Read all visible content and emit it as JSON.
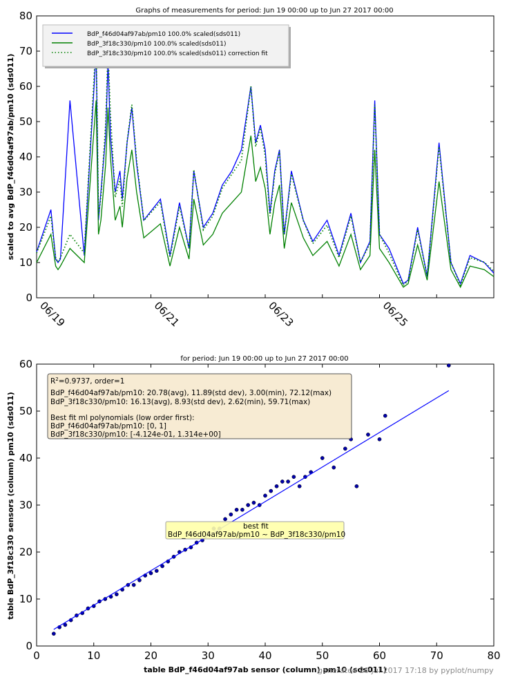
{
  "chart_data": [
    {
      "type": "line",
      "title": "Graphs of measurements for period: Jun 19 00:00 up to Jun 27 2017 00:00",
      "xlabel": "",
      "ylabel": "scaled to avg BdP_f46d04af97ab/pm10 (sds011)",
      "xlim": [
        "2017-06-19 00:00",
        "2017-06-27 00:00"
      ],
      "ylim": [
        0,
        80
      ],
      "x_ticks": [
        "06/19",
        "06/21",
        "06/23",
        "06/25"
      ],
      "y_ticks": [
        0,
        10,
        20,
        30,
        40,
        50,
        60,
        70,
        80
      ],
      "legend_position": "top-left",
      "grid": false,
      "x": [
        "2017-06-19 00:00",
        "2017-06-19 06:00",
        "2017-06-19 08:00",
        "2017-06-19 09:00",
        "2017-06-19 10:00",
        "2017-06-19 14:00",
        "2017-06-19 20:00",
        "2017-06-20 01:00",
        "2017-06-20 02:00",
        "2017-06-20 03:00",
        "2017-06-20 05:00",
        "2017-06-20 06:00",
        "2017-06-20 07:00",
        "2017-06-20 09:00",
        "2017-06-20 11:00",
        "2017-06-20 12:00",
        "2017-06-20 14:00",
        "2017-06-20 16:00",
        "2017-06-20 18:00",
        "2017-06-20 21:00",
        "2017-06-21 04:00",
        "2017-06-21 08:00",
        "2017-06-21 12:00",
        "2017-06-21 16:00",
        "2017-06-21 18:00",
        "2017-06-21 22:00",
        "2017-06-22 02:00",
        "2017-06-22 06:00",
        "2017-06-22 10:00",
        "2017-06-22 14:00",
        "2017-06-22 18:00",
        "2017-06-22 20:00",
        "2017-06-22 22:00",
        "2017-06-23 00:00",
        "2017-06-23 02:00",
        "2017-06-23 04:00",
        "2017-06-23 06:00",
        "2017-06-23 08:00",
        "2017-06-23 11:00",
        "2017-06-23 16:00",
        "2017-06-23 20:00",
        "2017-06-24 02:00",
        "2017-06-24 07:00",
        "2017-06-24 12:00",
        "2017-06-24 16:00",
        "2017-06-24 20:00",
        "2017-06-24 22:00",
        "2017-06-25 00:00",
        "2017-06-25 04:00",
        "2017-06-25 10:00",
        "2017-06-25 12:00",
        "2017-06-25 16:00",
        "2017-06-25 20:00",
        "2017-06-26 01:00",
        "2017-06-26 06:00",
        "2017-06-26 10:00",
        "2017-06-26 14:00",
        "2017-06-26 20:00",
        "2017-06-27 00:00"
      ],
      "series": [
        {
          "name": "BdP_f46d04af97ab/pm10  100.0% scaled(sds011)",
          "color": "#0000ff",
          "style": "solid",
          "values": [
            13,
            25,
            11,
            10,
            11,
            56,
            12,
            70,
            22,
            30,
            46,
            67,
            46,
            30,
            36,
            28,
            44,
            54,
            38,
            22,
            28,
            12,
            27,
            14,
            36,
            20,
            24,
            32,
            36,
            42,
            60,
            44,
            49,
            42,
            24,
            36,
            42,
            18,
            36,
            22,
            16,
            22,
            12,
            24,
            10,
            16,
            56,
            18,
            14,
            4,
            5,
            20,
            6,
            44,
            10,
            4,
            12,
            10,
            7
          ]
        },
        {
          "name": "BdP_3f18c330/pm10  100.0% scaled(sds011)",
          "color": "#008000",
          "style": "solid",
          "values": [
            10,
            18,
            9,
            8,
            9,
            14,
            10,
            56,
            18,
            22,
            38,
            54,
            40,
            22,
            26,
            20,
            34,
            42,
            30,
            17,
            21,
            9,
            20,
            11,
            28,
            15,
            18,
            24,
            27,
            30,
            46,
            33,
            37,
            31,
            18,
            27,
            32,
            14,
            27,
            17,
            12,
            16,
            9,
            18,
            8,
            12,
            42,
            14,
            10,
            3,
            4,
            15,
            5,
            33,
            8,
            3,
            9,
            8,
            6
          ]
        },
        {
          "name": "BdP_3f18c330/pm10  100.0% scaled(sds011) correction fit",
          "color": "#008000",
          "style": "dotted",
          "values": [
            12.7,
            23.2,
            11.4,
            10.1,
            11.4,
            18.0,
            12.7,
            73.2,
            23.2,
            28.5,
            49.5,
            70.5,
            52.2,
            28.5,
            33.8,
            25.9,
            44.3,
            54.8,
            39.0,
            21.9,
            27.2,
            11.4,
            25.9,
            14.0,
            36.4,
            19.3,
            23.2,
            31.1,
            35.1,
            39.0,
            60.0,
            42.9,
            48.2,
            40.3,
            23.2,
            35.1,
            41.6,
            18.0,
            35.1,
            21.9,
            15.4,
            20.6,
            11.4,
            23.2,
            10.1,
            15.4,
            54.8,
            18.0,
            12.7,
            3.5,
            4.8,
            19.3,
            6.2,
            42.9,
            10.1,
            3.5,
            11.4,
            10.1,
            7.5
          ]
        }
      ]
    },
    {
      "type": "scatter",
      "title": "for period: Jun 19 00:00 up to Jun 27 2017 00:00",
      "xlabel": "table BdP_f46d04af97ab sensor (column) pm10 (sds011)",
      "ylabel": "table BdP_3f18c330 sensors (column) pm10 (sds011)",
      "xlim": [
        0,
        80
      ],
      "ylim": [
        0,
        60
      ],
      "x_ticks": [
        0,
        10,
        20,
        30,
        40,
        50,
        60,
        70,
        80
      ],
      "y_ticks": [
        0,
        10,
        20,
        30,
        40,
        50,
        60
      ],
      "grid": false,
      "points_color": "#0000aa",
      "points_x": [
        3.0,
        4,
        5,
        6,
        7,
        8,
        9,
        10,
        11,
        12,
        13,
        14,
        15,
        16,
        17,
        18,
        19,
        20,
        21,
        22,
        23,
        24,
        25,
        26,
        27,
        28,
        29,
        30,
        31,
        32,
        33,
        34,
        35,
        36,
        37,
        38,
        39,
        40,
        41,
        42,
        43,
        44,
        45,
        46,
        47,
        48,
        50,
        52,
        54,
        55,
        56,
        58,
        60,
        61,
        72.12
      ],
      "points_y": [
        2.62,
        4,
        4.5,
        5.5,
        6.5,
        7,
        8,
        8.5,
        9.5,
        10,
        10.5,
        11,
        12,
        13,
        13,
        14,
        15,
        15.5,
        16,
        17,
        18,
        19,
        20,
        20.5,
        21,
        22,
        22.5,
        24,
        25,
        25,
        27,
        28,
        29,
        29,
        30,
        30.5,
        30,
        32,
        33,
        34,
        35,
        35,
        36,
        34,
        36,
        37,
        40,
        38,
        42,
        44,
        34,
        45,
        44,
        49,
        59.71
      ],
      "fit_line": {
        "color": "#0000ff",
        "x": [
          3.0,
          72.12
        ],
        "y": [
          3.53,
          54.36
        ]
      },
      "fit_label": "best fit\nBdP_f46d04af97ab/pm10 ~ BdP_3f18c330/pm10",
      "stats_box": {
        "r2_line": "=0.9737, order=1",
        "r2_prefix": "R",
        "r2_sup": "2",
        "stat1": "BdP_f46d04af97ab/pm10: 20.78(avg), 11.89(std dev),  3.00(min), 72.12(max)",
        "stat2": "BdP_3f18c330/pm10: 16.13(avg),  8.93(std dev),  2.62(min), 59.71(max)",
        "poly_head": "Best fit ml polynomials (low order first):",
        "poly1": "BdP_f46d04af97ab/pm10: [0, 1]",
        "poly2": "BdP_3f18c330/pm10: [-4.124e-01, 1.314e+00]"
      }
    }
  ],
  "footer": "generated 20 Jul 2017 17:18 by pyplot/numpy"
}
